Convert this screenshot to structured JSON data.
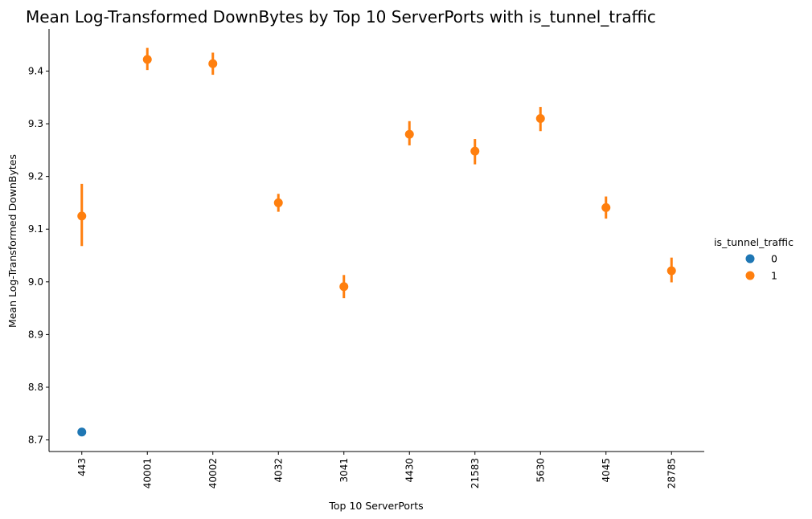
{
  "chart_data": {
    "type": "scatter",
    "title": "Mean Log-Transformed DownBytes by Top 10 ServerPorts with is_tunnel_traffic",
    "xlabel": "Top 10 ServerPorts",
    "ylabel": "Mean Log-Transformed DownBytes",
    "categories": [
      "443",
      "40001",
      "40002",
      "4032",
      "3041",
      "4430",
      "21583",
      "5630",
      "4045",
      "28785"
    ],
    "ylim": [
      8.678,
      9.48
    ],
    "yticks": [
      8.7,
      8.8,
      8.9,
      9.0,
      9.1,
      9.2,
      9.3,
      9.4
    ],
    "ytick_labels": [
      "8.7",
      "8.8",
      "8.9",
      "9.0",
      "9.1",
      "9.2",
      "9.3",
      "9.4"
    ],
    "grid": false,
    "legend": {
      "title": "is_tunnel_traffic",
      "position": "right"
    },
    "series": [
      {
        "name": "0",
        "color": "#1f77b4",
        "points": [
          {
            "x": "443",
            "y": 8.715
          }
        ]
      },
      {
        "name": "1",
        "color": "#ff7f0e",
        "points": [
          {
            "x": "443",
            "y": 9.125,
            "lo": 9.068,
            "hi": 9.186
          },
          {
            "x": "40001",
            "y": 9.422,
            "lo": 9.402,
            "hi": 9.444
          },
          {
            "x": "40002",
            "y": 9.414,
            "lo": 9.393,
            "hi": 9.435
          },
          {
            "x": "4032",
            "y": 9.15,
            "lo": 9.133,
            "hi": 9.167
          },
          {
            "x": "3041",
            "y": 8.991,
            "lo": 8.969,
            "hi": 9.013
          },
          {
            "x": "4430",
            "y": 9.28,
            "lo": 9.259,
            "hi": 9.305
          },
          {
            "x": "21583",
            "y": 9.248,
            "lo": 9.223,
            "hi": 9.271
          },
          {
            "x": "5630",
            "y": 9.31,
            "lo": 9.286,
            "hi": 9.332
          },
          {
            "x": "4045",
            "y": 9.141,
            "lo": 9.12,
            "hi": 9.162
          },
          {
            "x": "28785",
            "y": 9.021,
            "lo": 8.999,
            "hi": 9.046
          }
        ]
      }
    ]
  }
}
